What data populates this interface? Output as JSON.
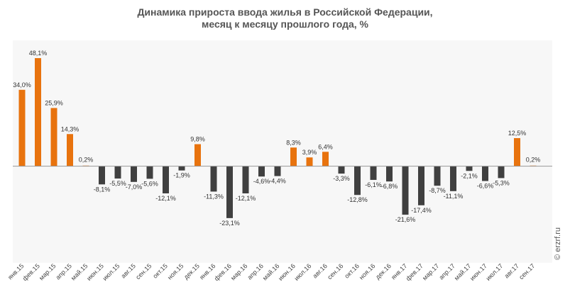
{
  "chart_data": {
    "type": "bar",
    "title_lines": [
      "Динамика прироста ввода жилья в Российской Федерации,",
      "месяц к месяцу прошлого года, %"
    ],
    "watermark": "© erzrf.ru",
    "ylim": [
      -43,
      56
    ],
    "grid": false,
    "colors": {
      "positive": "#e8730e",
      "negative": "#404040",
      "plot_background": "#f7f7f7"
    },
    "categories": [
      "янв.15",
      "фев.15",
      "мар.15",
      "апр.15",
      "май.15",
      "июн.15",
      "июл.15",
      "авг.15",
      "сен.15",
      "окт.15",
      "ноя.15",
      "дек.15",
      "янв.16",
      "фев.16",
      "мар.16",
      "апр.16",
      "май.16",
      "июн.16",
      "июл.16",
      "авг.16",
      "сен.16",
      "окт.16",
      "ноя.16",
      "дек.16",
      "янв.17",
      "фев.17",
      "мар.17",
      "апр.17",
      "май.17",
      "июн.17",
      "июл.17",
      "авг.17",
      "сен.17"
    ],
    "values": [
      34.0,
      48.1,
      25.9,
      14.3,
      0.2,
      -8.1,
      -5.5,
      -7.0,
      -5.6,
      -12.1,
      -1.9,
      9.8,
      -11.3,
      -23.1,
      -12.1,
      -4.6,
      -4.4,
      8.3,
      3.9,
      6.4,
      -3.3,
      -12.8,
      -6.1,
      -6.8,
      -21.6,
      -17.4,
      -8.7,
      -11.1,
      -2.1,
      -6.6,
      -5.3,
      12.5,
      0.2
    ],
    "labels": [
      "34,0%",
      "48,1%",
      "25,9%",
      "14,3%",
      "0,2%",
      "-8,1%",
      "-5,5%",
      "-7,0%",
      "-5,6%",
      "-12,1%",
      "-1,9%",
      "9,8%",
      "-11,3%",
      "-23,1%",
      "-12,1%",
      "-4,6%",
      "-4,4%",
      "8,3%",
      "3,9%",
      "6,4%",
      "-3,3%",
      "-12,8%",
      "-6,1%",
      "-6,8%",
      "-21,6%",
      "-17,4%",
      "-8,7%",
      "-11,1%",
      "-2,1%",
      "-6,6%",
      "-5,3%",
      "12,5%",
      "0,2%"
    ]
  }
}
